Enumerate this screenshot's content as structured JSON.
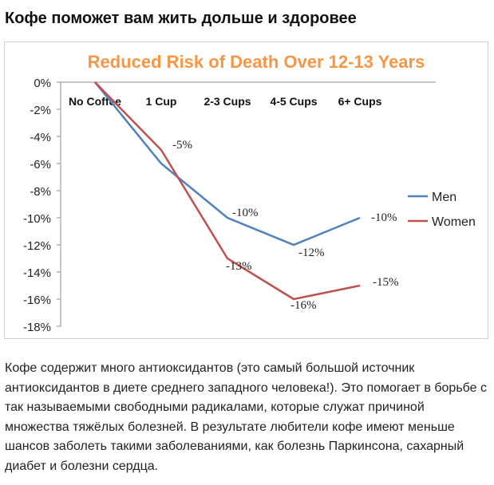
{
  "article": {
    "heading": "Кофе поможет вам жить дольше и здоровее",
    "paragraph": "Кофе содержит много антиоксидантов (это самый большой источник антиоксидантов в диете среднего западного человека!). Это помогает в борьбе с так называемыми свободными радикалами, которые служат причиной множества тяжёлых болезней. В результате любители кофе имеют меньше шансов заболеть такими заболеваниями, как болезнь Паркинсона, сахарный диабет и болезни сердца."
  },
  "chart_data": {
    "type": "line",
    "title": "Reduced Risk of Death Over 12-13 Years",
    "categories": [
      "No Coffee",
      "1 Cup",
      "2-3 Cups",
      "4-5 Cups",
      "6+ Cups"
    ],
    "ylim": [
      -18,
      0
    ],
    "yticks": [
      0,
      -2,
      -4,
      -6,
      -8,
      -10,
      -12,
      -14,
      -16,
      -18
    ],
    "ytick_labels": [
      "0%",
      "-2%",
      "-4%",
      "-6%",
      "-8%",
      "-10%",
      "-12%",
      "-14%",
      "-16%",
      "-18%"
    ],
    "grid": false,
    "legend": "right",
    "series": [
      {
        "name": "Men",
        "color": "#4f81bd",
        "values": [
          0,
          -6,
          -10,
          -12,
          -10
        ],
        "labels": [
          "",
          "",
          "-10%",
          "-12%",
          "-10%"
        ]
      },
      {
        "name": "Women",
        "color": "#c0504d",
        "values": [
          0,
          -5,
          -13,
          -16,
          -15
        ],
        "labels": [
          "",
          "-5%",
          "-13%",
          "-16%",
          "-15%"
        ]
      }
    ],
    "title_color": "#f79646"
  }
}
